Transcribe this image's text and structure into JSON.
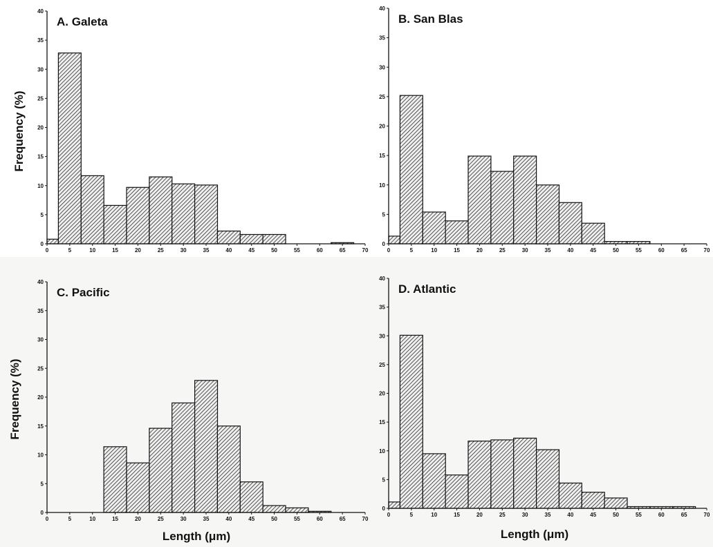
{
  "figure": {
    "ylabel": "Frequency (%)",
    "xlabel": "Length (μm)"
  },
  "chart_data": [
    {
      "type": "bar",
      "title": "A. Galeta",
      "bin_edges": [
        0,
        2.5,
        7.5,
        12.5,
        17.5,
        22.5,
        27.5,
        32.5,
        37.5,
        42.5,
        47.5,
        52.5,
        57.5,
        62.5,
        67.5,
        70
      ],
      "values": [
        0.8,
        32.8,
        11.7,
        6.6,
        9.7,
        11.5,
        10.3,
        10.1,
        2.2,
        1.6,
        1.6,
        0,
        0,
        0.2,
        0
      ],
      "xlim": [
        0,
        70
      ],
      "ylim": [
        0,
        40
      ],
      "xticks": [
        0,
        5,
        10,
        15,
        20,
        25,
        30,
        35,
        40,
        45,
        50,
        55,
        60,
        65,
        70
      ],
      "yticks": [
        0,
        5,
        10,
        15,
        20,
        25,
        30,
        35,
        40
      ],
      "show_xlabel": false,
      "show_ylabel": true
    },
    {
      "type": "bar",
      "title": "B. San Blas",
      "bin_edges": [
        0,
        2.5,
        7.5,
        12.5,
        17.5,
        22.5,
        27.5,
        32.5,
        37.5,
        42.5,
        47.5,
        52.5,
        57.5,
        62.5,
        67.5,
        70
      ],
      "values": [
        1.3,
        25.2,
        5.4,
        3.9,
        14.9,
        12.3,
        14.9,
        10.0,
        7.0,
        3.5,
        0.4,
        0.4,
        0,
        0,
        0
      ],
      "xlim": [
        0,
        70
      ],
      "ylim": [
        0,
        40
      ],
      "xticks": [
        0,
        5,
        10,
        15,
        20,
        25,
        30,
        35,
        40,
        45,
        50,
        55,
        60,
        65,
        70
      ],
      "yticks": [
        0,
        5,
        10,
        15,
        20,
        25,
        30,
        35,
        40
      ],
      "show_xlabel": false,
      "show_ylabel": false
    },
    {
      "type": "bar",
      "title": "C. Pacific",
      "bin_edges": [
        0,
        2.5,
        7.5,
        12.5,
        17.5,
        22.5,
        27.5,
        32.5,
        37.5,
        42.5,
        47.5,
        52.5,
        57.5,
        62.5,
        67.5,
        70
      ],
      "values": [
        0,
        0,
        0,
        11.4,
        8.6,
        14.6,
        19.0,
        22.9,
        15.0,
        5.3,
        1.2,
        0.8,
        0.2,
        0,
        0
      ],
      "xlim": [
        0,
        70
      ],
      "ylim": [
        0,
        40
      ],
      "xticks": [
        0,
        5,
        10,
        15,
        20,
        25,
        30,
        35,
        40,
        45,
        50,
        55,
        60,
        65,
        70
      ],
      "yticks": [
        0,
        5,
        10,
        15,
        20,
        25,
        30,
        35,
        40
      ],
      "show_xlabel": true,
      "show_ylabel": true
    },
    {
      "type": "bar",
      "title": "D. Atlantic",
      "bin_edges": [
        0,
        2.5,
        7.5,
        12.5,
        17.5,
        22.5,
        27.5,
        32.5,
        37.5,
        42.5,
        47.5,
        52.5,
        57.5,
        62.5,
        67.5,
        70
      ],
      "values": [
        1.1,
        30.1,
        9.5,
        5.8,
        11.7,
        11.9,
        12.2,
        10.2,
        4.4,
        2.8,
        1.8,
        0.3,
        0.3,
        0.3,
        0
      ],
      "xlim": [
        0,
        70
      ],
      "ylim": [
        0,
        40
      ],
      "xticks": [
        0,
        5,
        10,
        15,
        20,
        25,
        30,
        35,
        40,
        45,
        50,
        55,
        60,
        65,
        70
      ],
      "yticks": [
        0,
        5,
        10,
        15,
        20,
        25,
        30,
        35,
        40
      ],
      "show_xlabel": true,
      "show_ylabel": false
    }
  ]
}
